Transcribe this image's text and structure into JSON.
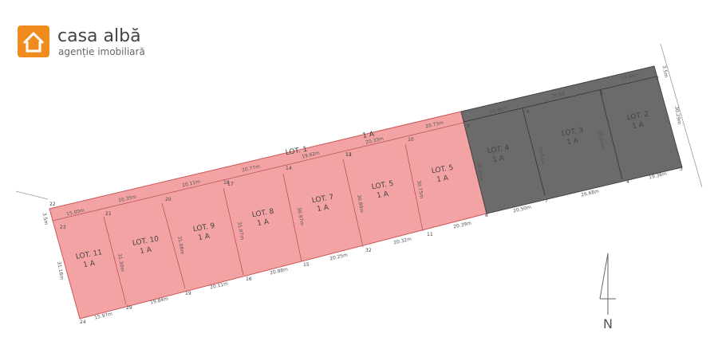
{
  "logo": {
    "name": "casa albă",
    "tagline": "agenție imobiliară"
  },
  "lots": [
    {
      "label": "LOT. 11",
      "area": "1 A"
    },
    {
      "label": "LOT. 10",
      "area": "1 A"
    },
    {
      "label": "LOT. 9",
      "area": "1 A"
    },
    {
      "label": "LOT. 8",
      "area": "1 A"
    },
    {
      "label": "LOT. 7",
      "area": "1 A"
    },
    {
      "label": "LOT. 5",
      "area": "1 A"
    },
    {
      "label": "LOT. 5",
      "area": "1 A"
    },
    {
      "label": "LOT. 4",
      "area": "1 A"
    },
    {
      "label": "LOT. 3",
      "area": "1 A"
    },
    {
      "label": "LOT. 2",
      "area": "1 A"
    },
    {
      "label": "LOT. 1",
      "area": "1 A"
    }
  ],
  "measurements": [
    "15.00m",
    "20.35m",
    "20.11m",
    "20.77m",
    "19.62m",
    "20.33m",
    "20.73m",
    "20.46m",
    "26.68",
    "19.36m",
    "15.97m",
    "19.84m",
    "20.11m",
    "20.88m",
    "20.25m",
    "20.32m",
    "20.39m",
    "20.50m",
    "26.68m",
    "19.36m",
    "3.5m",
    "3.5m",
    "30.29m",
    "31.18m",
    "31.30m",
    "31.08m",
    "31.07m",
    "30.97m",
    "30.86m",
    "30.75m",
    "30.64m",
    "30.54m",
    "30.54m"
  ],
  "points": [
    "22",
    "23",
    "24",
    "21",
    "29",
    "20",
    "19",
    "18",
    "16",
    "17",
    "15",
    "14",
    "32",
    "13",
    "11",
    "12",
    "8",
    "10",
    "7",
    "9",
    "6",
    "4",
    "5",
    "3",
    "1",
    "2"
  ],
  "compass": "N"
}
